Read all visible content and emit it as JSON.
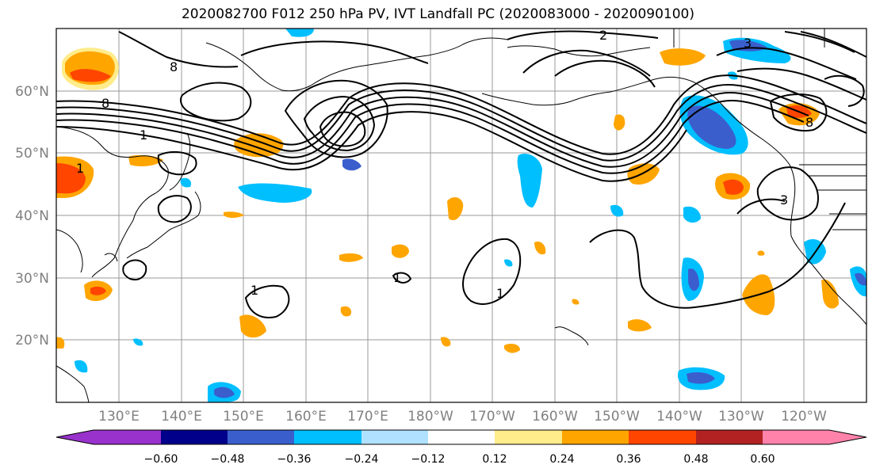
{
  "title": "2020082700 F012 250 hPa PV, IVT Landfall PC (2020083000 - 2020090100)",
  "map": {
    "lat_labels": [
      "60°N",
      "50°N",
      "40°N",
      "30°N",
      "20°N"
    ],
    "lon_labels": [
      "130°E",
      "140°E",
      "150°E",
      "160°E",
      "170°E",
      "180°W",
      "170°W",
      "160°W",
      "150°W",
      "140°W",
      "130°W",
      "120°W"
    ],
    "contour_labels": [
      "8",
      "8",
      "1",
      "1",
      "2",
      "3",
      "1",
      "1",
      "1",
      "8",
      "3"
    ]
  },
  "colorbar": {
    "ticks": [
      "−0.60",
      "−0.48",
      "−0.36",
      "−0.24",
      "−0.12",
      "0.12",
      "0.24",
      "0.36",
      "0.48",
      "0.60"
    ],
    "colors": [
      "#9932cc",
      "#00008b",
      "#3a5fcd",
      "#00bfff",
      "#b0e2ff",
      "#ffffff",
      "#ffec8b",
      "#ffa500",
      "#ff4500",
      "#b22222",
      "#ff82ab"
    ]
  }
}
